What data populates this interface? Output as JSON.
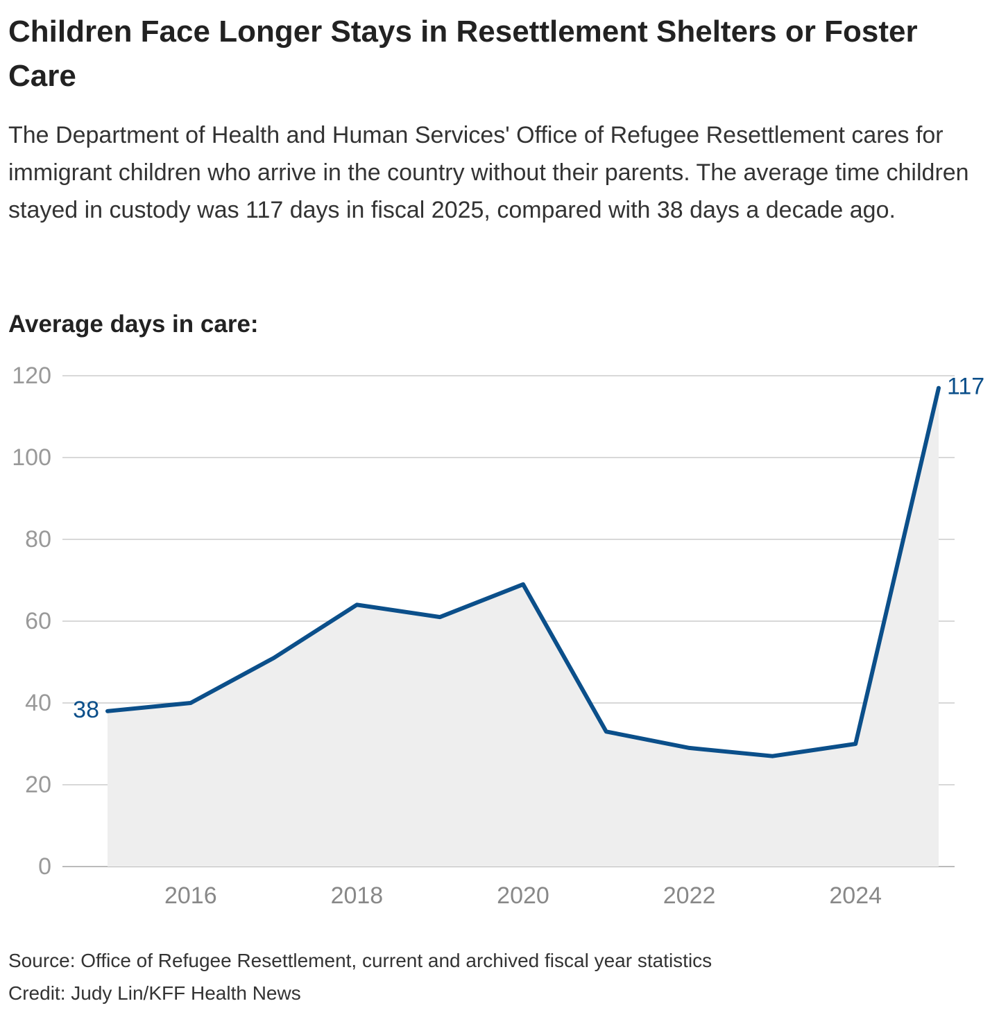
{
  "header": {
    "title": "Children Face Longer Stays in Resettlement Shelters or Foster Care",
    "subtitle": "The Department of Health and Human Services' Office of Refugee Resettlement cares for immigrant children who arrive in the country without their parents. The average time children stayed in custody was 117 days in fiscal 2025, compared with 38 days a decade ago."
  },
  "footer": {
    "source": "Source: Office of Refugee Resettlement, current and archived fiscal year statistics",
    "credit": "Credit: Judy Lin/KFF Health News"
  },
  "colors": {
    "line": "#0b4f8a",
    "area": "#eeeeee",
    "grid": "#cccccc",
    "tick_label": "#999999",
    "x_tick_label": "#888888"
  },
  "chart_data": {
    "type": "area",
    "title": "Children Face Longer Stays in Resettlement Shelters or Foster Care",
    "ylabel": "Average days in care:",
    "xlabel": "",
    "x": [
      2015,
      2016,
      2017,
      2018,
      2019,
      2020,
      2021,
      2022,
      2023,
      2024,
      2025
    ],
    "series": [
      {
        "values": [
          38,
          40,
          51,
          64,
          61,
          69,
          33,
          29,
          27,
          30,
          117
        ]
      }
    ],
    "ylim": [
      0,
      120
    ],
    "yticks": [
      0,
      20,
      40,
      60,
      80,
      100,
      120
    ],
    "xticks": [
      2016,
      2018,
      2020,
      2022,
      2024
    ],
    "grid": true,
    "legend": "none",
    "annotations": [
      {
        "x": 2015,
        "y": 38,
        "text": "38",
        "position": "left"
      },
      {
        "x": 2025,
        "y": 117,
        "text": "117",
        "position": "right"
      }
    ]
  }
}
